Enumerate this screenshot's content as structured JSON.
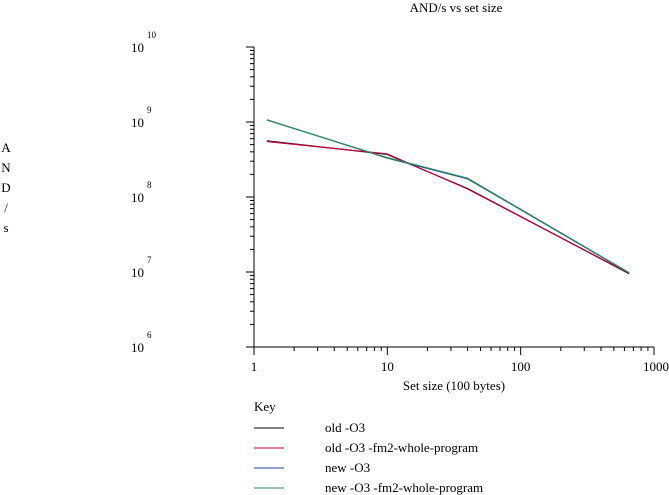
{
  "chart_data": {
    "type": "line",
    "title": "AND/s vs set size",
    "xlabel": "Set size (100 bytes)",
    "ylabel": "AND/s",
    "x_scale": "log",
    "y_scale": "log",
    "xlim": [
      1,
      1000
    ],
    "ylim": [
      1000000,
      10000000000
    ],
    "x_ticks": [
      {
        "value": 1,
        "label": "1"
      },
      {
        "value": 10,
        "label": "10"
      },
      {
        "value": 100,
        "label": "100"
      },
      {
        "value": 1000,
        "label": "1000"
      }
    ],
    "y_ticks": [
      {
        "value": 1000000,
        "base": "10",
        "exp": "6"
      },
      {
        "value": 10000000,
        "base": "10",
        "exp": "7"
      },
      {
        "value": 100000000,
        "base": "10",
        "exp": "8"
      },
      {
        "value": 1000000000,
        "base": "10",
        "exp": "9"
      },
      {
        "value": 10000000000,
        "base": "10",
        "exp": "10"
      }
    ],
    "grid": false,
    "legend_title": "Key",
    "legend_position": "bottom",
    "series": [
      {
        "name": "old -O3",
        "color": "#000000",
        "x": [
          1.25,
          10,
          40,
          650
        ],
        "y": [
          560000000,
          370000000,
          130000000,
          9500000
        ]
      },
      {
        "name": "old -O3 -fm2-whole-program",
        "color": "#c0003c",
        "x": [
          1.25,
          10,
          40,
          650
        ],
        "y": [
          550000000,
          375000000,
          128000000,
          9600000
        ]
      },
      {
        "name": "new -O3",
        "color": "#1f3fa8",
        "x": [
          1.25,
          10,
          40,
          650
        ],
        "y": [
          1070000000,
          330000000,
          175000000,
          9700000
        ]
      },
      {
        "name": "new -O3 -fm2-whole-program",
        "color": "#2e8b57",
        "x": [
          1.25,
          10,
          40,
          650
        ],
        "y": [
          1060000000,
          335000000,
          178000000,
          9800000
        ]
      }
    ]
  }
}
